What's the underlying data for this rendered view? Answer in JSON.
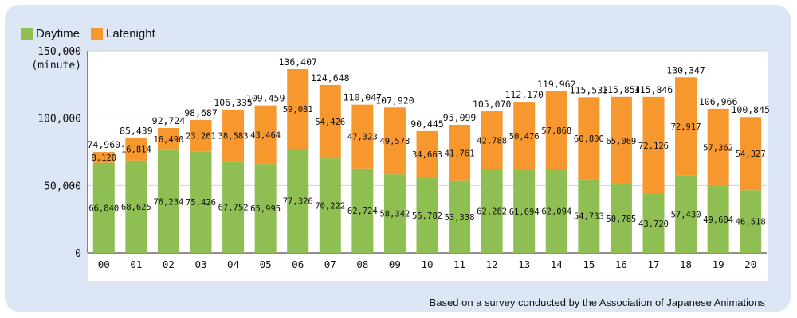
{
  "chart_data": {
    "type": "bar",
    "stacked": true,
    "categories": [
      "00",
      "01",
      "02",
      "03",
      "04",
      "05",
      "06",
      "07",
      "08",
      "09",
      "10",
      "11",
      "12",
      "13",
      "14",
      "15",
      "16",
      "17",
      "18",
      "19",
      "20"
    ],
    "series": [
      {
        "name": "Daytime",
        "color": "#8fbf52",
        "values": [
          66840,
          68625,
          76234,
          75426,
          67752,
          65995,
          77326,
          70222,
          62724,
          58342,
          55782,
          53338,
          62282,
          61694,
          62094,
          54733,
          50785,
          43720,
          57430,
          49604,
          46518
        ],
        "labels": [
          "66,840",
          "68,625",
          "76,234",
          "75,426",
          "67,752",
          "65,995",
          "77,326",
          "70,222",
          "62,724",
          "58,342",
          "55,782",
          "53,338",
          "62,282",
          "61,694",
          "62,094",
          "54,733",
          "50,785",
          "43,720",
          "57,430",
          "49,604",
          "46,518"
        ]
      },
      {
        "name": "Latenight",
        "color": "#f7982e",
        "values": [
          8120,
          16814,
          16490,
          23261,
          38583,
          43464,
          59081,
          54426,
          47323,
          49578,
          34663,
          41761,
          42788,
          50476,
          57868,
          60800,
          65069,
          72126,
          72917,
          57362,
          54327
        ],
        "labels": [
          "8,120",
          "16,814",
          "16,490",
          "23,261",
          "38,583",
          "43,464",
          "59,081",
          "54,426",
          "47,323",
          "49,578",
          "34,663",
          "41,761",
          "42,788",
          "50,476",
          "57,868",
          "60,800",
          "65,069",
          "72,126",
          "72,917",
          "57,362",
          "54,327"
        ]
      }
    ],
    "totals": [
      74960,
      85439,
      92724,
      98687,
      106335,
      109459,
      136407,
      124648,
      110047,
      107920,
      90445,
      95099,
      105070,
      112170,
      119962,
      115533,
      115854,
      115846,
      130347,
      106966,
      100845
    ],
    "total_labels": [
      "74,960",
      "85,439",
      "92,724",
      "98,687",
      "106,335",
      "109,459",
      "136,407",
      "124,648",
      "110,047",
      "107,920",
      "90,445",
      "95,099",
      "105,070",
      "112,170",
      "119,962",
      "115,533",
      "115,854",
      "115,846",
      "130,347",
      "106,966",
      "100,845"
    ],
    "ylim": [
      0,
      150000
    ],
    "yticks": [
      0,
      50000,
      100000,
      150000
    ],
    "ytick_labels": [
      "0",
      "50,000",
      "100,000",
      "150,000"
    ],
    "ylabel": "(minute)",
    "grid": true,
    "legend_position": "top-left"
  },
  "source_note": "Based on a survey conducted by the Association of Japanese Animations"
}
